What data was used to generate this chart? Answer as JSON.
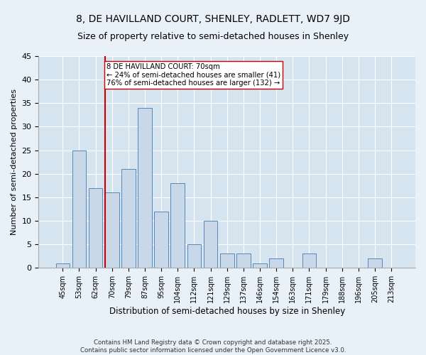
{
  "title1": "8, DE HAVILLAND COURT, SHENLEY, RADLETT, WD7 9JD",
  "title2": "Size of property relative to semi-detached houses in Shenley",
  "xlabel": "Distribution of semi-detached houses by size in Shenley",
  "ylabel": "Number of semi-detached properties",
  "categories": [
    "45sqm",
    "53sqm",
    "62sqm",
    "70sqm",
    "79sqm",
    "87sqm",
    "95sqm",
    "104sqm",
    "112sqm",
    "121sqm",
    "129sqm",
    "137sqm",
    "146sqm",
    "154sqm",
    "163sqm",
    "171sqm",
    "179sqm",
    "188sqm",
    "196sqm",
    "205sqm",
    "213sqm"
  ],
  "values": [
    1,
    25,
    17,
    16,
    21,
    34,
    12,
    18,
    5,
    10,
    3,
    3,
    1,
    2,
    0,
    3,
    0,
    0,
    0,
    2,
    0
  ],
  "bar_color": "#c8d8e8",
  "bar_edge_color": "#5588bb",
  "highlight_index": 3,
  "highlight_line_color": "#cc0000",
  "annotation_line1": "8 DE HAVILLAND COURT: 70sqm",
  "annotation_line2": "← 24% of semi-detached houses are smaller (41)",
  "annotation_line3": "76% of semi-detached houses are larger (132) →",
  "annotation_box_color": "#ffffff",
  "annotation_box_edge_color": "#cc0000",
  "footer_text": "Contains HM Land Registry data © Crown copyright and database right 2025.\nContains public sector information licensed under the Open Government Licence v3.0.",
  "ylim": [
    0,
    45
  ],
  "yticks": [
    0,
    5,
    10,
    15,
    20,
    25,
    30,
    35,
    40,
    45
  ],
  "bg_color": "#d6e4f0",
  "fig_bg_color": "#e8f0f8",
  "title1_fontsize": 10,
  "title2_fontsize": 9
}
